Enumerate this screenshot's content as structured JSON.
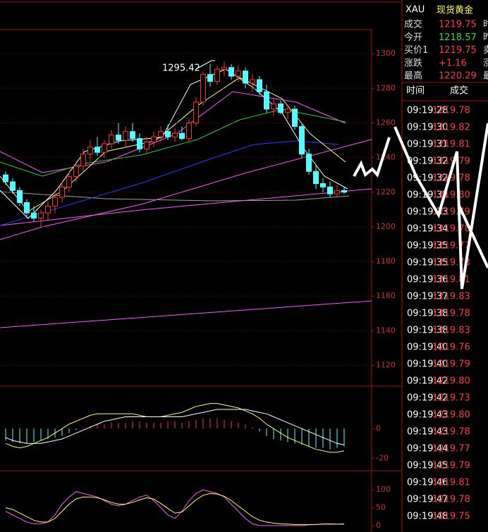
{
  "chart_data": [
    {
      "type": "candlestick",
      "open": [
        1230,
        1226,
        1221,
        1214,
        1208,
        1205,
        1208,
        1212,
        1217,
        1223,
        1229,
        1235,
        1242,
        1246,
        1243,
        1248,
        1253,
        1250,
        1255,
        1251,
        1245,
        1249,
        1252,
        1255,
        1252,
        1254,
        1251,
        1260,
        1272,
        1288,
        1284,
        1291,
        1292,
        1287,
        1290,
        1283,
        1285,
        1278,
        1268,
        1271,
        1266,
        1268,
        1258,
        1242,
        1232,
        1225,
        1223,
        1219,
        1221
      ],
      "high": [
        1232,
        1228,
        1223,
        1216,
        1212,
        1210,
        1215,
        1220,
        1226,
        1232,
        1238,
        1245,
        1250,
        1252,
        1250,
        1256,
        1260,
        1258,
        1260,
        1254,
        1252,
        1255,
        1258,
        1259,
        1257,
        1258,
        1262,
        1275,
        1290,
        1294,
        1293,
        1295.42,
        1294,
        1293,
        1292,
        1288,
        1287,
        1282,
        1274,
        1273,
        1270,
        1270,
        1260,
        1245,
        1236,
        1228,
        1226,
        1224,
        1223
      ],
      "low": [
        1224,
        1219,
        1212,
        1205,
        1203,
        1200,
        1204,
        1208,
        1214,
        1220,
        1226,
        1232,
        1238,
        1241,
        1240,
        1245,
        1248,
        1246,
        1249,
        1243,
        1242,
        1246,
        1249,
        1250,
        1249,
        1250,
        1249,
        1258,
        1270,
        1281,
        1282,
        1287,
        1285,
        1284,
        1280,
        1278,
        1276,
        1266,
        1264,
        1265,
        1262,
        1256,
        1240,
        1230,
        1222,
        1220,
        1217,
        1217,
        1219
      ],
      "close": [
        1226,
        1221,
        1214,
        1208,
        1205,
        1208,
        1212,
        1217,
        1223,
        1229,
        1235,
        1242,
        1246,
        1243,
        1248,
        1253,
        1250,
        1255,
        1251,
        1245,
        1249,
        1252,
        1255,
        1252,
        1254,
        1251,
        1260,
        1272,
        1288,
        1284,
        1291,
        1292,
        1287,
        1290,
        1283,
        1285,
        1278,
        1268,
        1271,
        1266,
        1268,
        1258,
        1242,
        1232,
        1225,
        1223,
        1219,
        1221,
        1220
      ],
      "up_color": "#ff3232",
      "down_color": "#54ffff",
      "ylim": [
        1108,
        1320
      ],
      "yticks": [
        1300,
        1280,
        1260,
        1240,
        1220,
        1200,
        1180,
        1160,
        1140,
        1120
      ],
      "grid": true
    },
    {
      "type": "macd",
      "ylim": [
        -27,
        23
      ],
      "yticks": [
        0,
        -20
      ],
      "values": [
        -8,
        -9,
        -10,
        -10,
        -9,
        -8,
        -7,
        -6,
        -5,
        -3,
        -1,
        1,
        2,
        3,
        3,
        4,
        4,
        4,
        5,
        5,
        4,
        4,
        4,
        5,
        5,
        4,
        5,
        6,
        7,
        7,
        7,
        6,
        5,
        4,
        3,
        1,
        -2,
        -5,
        -7,
        -8,
        -9,
        -10,
        -11,
        -12,
        -13,
        -13,
        -14,
        -13,
        -12
      ],
      "up_color": "#ff3232",
      "down_color": "#54ffff",
      "series": [
        {
          "color": "#ffff54",
          "values": [
            -10,
            -12,
            -13,
            -12,
            -10,
            -8,
            -6,
            -3,
            0,
            3,
            5,
            7,
            9,
            10,
            10,
            10,
            10,
            10,
            10,
            9,
            8,
            8,
            8,
            9,
            10,
            11,
            13,
            15,
            16,
            17,
            17,
            16,
            15,
            14,
            12,
            10,
            7,
            3,
            0,
            -3,
            -6,
            -8,
            -10,
            -12,
            -14,
            -15,
            -16,
            -16,
            -15
          ]
        },
        {
          "color": "#ffffff",
          "values": [
            -6,
            -8,
            -9,
            -10,
            -10,
            -10,
            -9,
            -8,
            -7,
            -5,
            -3,
            -1,
            1,
            3,
            5,
            6,
            7,
            8,
            8,
            8,
            8,
            8,
            8,
            8,
            8,
            8,
            9,
            10,
            11,
            12,
            13,
            13,
            13,
            13,
            13,
            12,
            11,
            10,
            8,
            6,
            4,
            2,
            0,
            -2,
            -4,
            -6,
            -8,
            -10,
            -11
          ]
        }
      ]
    },
    {
      "type": "line",
      "ylim": [
        -12,
        124
      ],
      "yticks": [
        100,
        50,
        0
      ],
      "series": [
        {
          "color": "#ff54ff",
          "values": [
            40,
            30,
            20,
            10,
            5,
            5,
            10,
            30,
            60,
            80,
            95,
            90,
            85,
            80,
            70,
            60,
            55,
            60,
            70,
            80,
            85,
            70,
            50,
            30,
            20,
            40,
            70,
            90,
            100,
            95,
            90,
            80,
            60,
            40,
            20,
            5,
            0,
            0,
            0,
            0,
            0,
            0,
            0,
            2,
            3,
            5,
            5,
            4,
            5
          ]
        },
        {
          "color": "#ffff54",
          "values": [
            50,
            45,
            35,
            25,
            15,
            10,
            10,
            20,
            40,
            60,
            75,
            80,
            80,
            78,
            72,
            65,
            60,
            60,
            65,
            72,
            78,
            74,
            62,
            48,
            35,
            38,
            55,
            72,
            85,
            90,
            88,
            82,
            70,
            55,
            40,
            25,
            15,
            10,
            7,
            5,
            4,
            3,
            3,
            3,
            3,
            4,
            4,
            4,
            4
          ]
        }
      ]
    }
  ],
  "quote": {
    "symbol": "XAU",
    "name": "现货黄金",
    "rows": [
      {
        "label": "成交",
        "value": "1219.75",
        "cut": "时"
      },
      {
        "label": "今开",
        "value": "1218.57",
        "cut": "昨"
      },
      {
        "label": "买价1",
        "value": "1219.75",
        "cut": "卖"
      },
      {
        "label": "涨跌",
        "value": "+1.16",
        "cut": "涨"
      },
      {
        "label": "最高",
        "value": "1220.29",
        "cut": "最"
      }
    ]
  },
  "trades": {
    "headers": [
      "时间",
      "成交"
    ],
    "rows": [
      [
        "09:19:28",
        "1219.78"
      ],
      [
        "09:19:30",
        "1219.82"
      ],
      [
        "09:19:31",
        "1219.81"
      ],
      [
        "09:19:32",
        "1219.79"
      ],
      [
        "09:19:32",
        "1219.78"
      ],
      [
        "09:19:33",
        "1219.80"
      ],
      [
        "09:19:33",
        "1219.79"
      ],
      [
        "09:19:34",
        "1219.78"
      ],
      [
        "09:19:35",
        "1219.77"
      ],
      [
        "09:19:35",
        "1219.78"
      ],
      [
        "09:19:36",
        "1219.81"
      ],
      [
        "09:19:37",
        "1219.83"
      ],
      [
        "09:19:38",
        "1219.78"
      ],
      [
        "09:19:38",
        "1219.83"
      ],
      [
        "09:19:40",
        "1219.76"
      ],
      [
        "09:19:40",
        "1219.79"
      ],
      [
        "09:19:42",
        "1219.80"
      ],
      [
        "09:19:42",
        "1219.73"
      ],
      [
        "09:19:43",
        "1219.80"
      ],
      [
        "09:19:43",
        "1219.78"
      ],
      [
        "09:19:44",
        "1219.77"
      ],
      [
        "09:19:45",
        "1219.79"
      ],
      [
        "09:19:46",
        "1219.81"
      ],
      [
        "09:19:47",
        "1219.78"
      ],
      [
        "09:19:48",
        "1219.75"
      ]
    ]
  }
}
